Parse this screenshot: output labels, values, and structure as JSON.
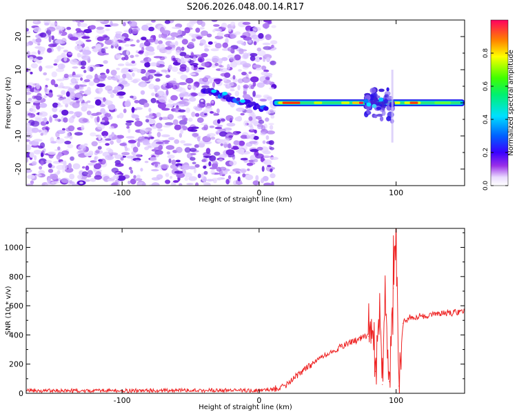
{
  "title": "S206.2026.048.00.14.R17",
  "chart_data": [
    {
      "type": "heatmap",
      "title": "S206.2026.048.00.14.R17",
      "xlabel": "Height of straight line (km)",
      "ylabel": "Frequency (Hz)",
      "xlim": [
        -170,
        150
      ],
      "ylim": [
        -25,
        25
      ],
      "xticks": [
        -100,
        0,
        100
      ],
      "yticks": [
        -20,
        -10,
        0,
        10,
        20
      ],
      "colorbar": {
        "label": "Normalized spectral amplitude",
        "range": [
          0,
          1
        ],
        "ticks": [
          "0.0",
          "0.2",
          "0.4",
          "0.6",
          "0.8"
        ],
        "tick_values": [
          0,
          0.2,
          0.4,
          0.6,
          0.8
        ]
      },
      "features": {
        "noise_region_x": [
          -170,
          5
        ],
        "signal_band_x": [
          10,
          150
        ],
        "signal_band_freq_hz": 0,
        "drift_segment": {
          "x": [
            -40,
            5
          ],
          "freq": [
            4,
            -2
          ]
        },
        "disturbance_x": [
          75,
          100
        ]
      }
    },
    {
      "type": "line",
      "xlabel": "Height of straight line (km)",
      "ylabel": "SNR (10 * v/v)",
      "xlim": [
        -170,
        150
      ],
      "ylim": [
        0,
        1130
      ],
      "xticks": [
        -100,
        0,
        100
      ],
      "yticks": [
        0,
        200,
        400,
        600,
        800,
        1000
      ],
      "color": "#ee2222",
      "series": [
        {
          "name": "SNR",
          "x": [
            -170,
            -100,
            -50,
            0,
            10,
            20,
            30,
            40,
            50,
            60,
            70,
            75,
            80,
            82,
            85,
            88,
            90,
            92,
            95,
            98,
            100,
            102,
            105,
            110,
            120,
            130,
            140,
            150
          ],
          "values": [
            18,
            18,
            20,
            20,
            25,
            60,
            140,
            210,
            270,
            320,
            360,
            380,
            390,
            500,
            150,
            620,
            60,
            680,
            80,
            720,
            1130,
            50,
            480,
            520,
            530,
            540,
            550,
            560
          ]
        }
      ]
    }
  ]
}
